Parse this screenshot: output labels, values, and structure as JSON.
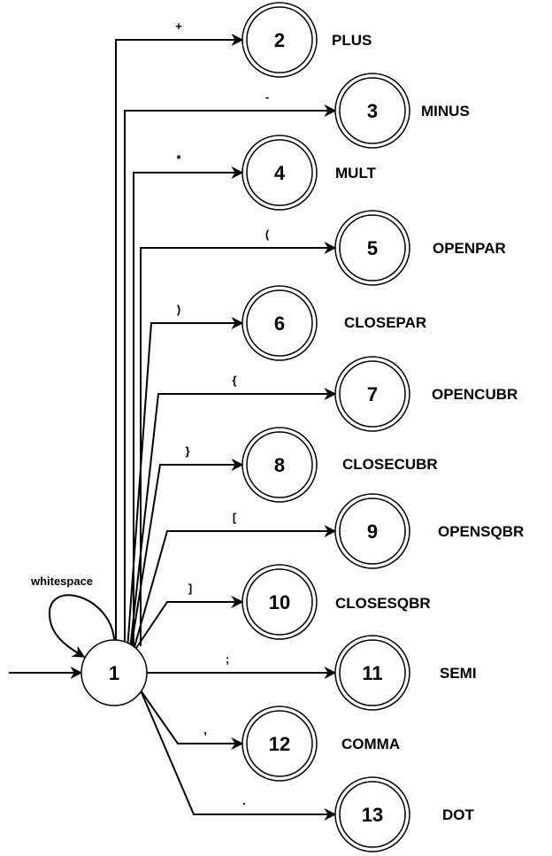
{
  "start_state": {
    "label": "1",
    "self_loop_label": "whitespace"
  },
  "transitions": [
    {
      "symbol": "+",
      "state": "2",
      "token": "PLUS"
    },
    {
      "symbol": "-",
      "state": "3",
      "token": "MINUS"
    },
    {
      "symbol": "*",
      "state": "4",
      "token": "MULT"
    },
    {
      "symbol": "(",
      "state": "5",
      "token": "OPENPAR"
    },
    {
      "symbol": ")",
      "state": "6",
      "token": "CLOSEPAR"
    },
    {
      "symbol": "{",
      "state": "7",
      "token": "OPENCUBR"
    },
    {
      "symbol": "}",
      "state": "8",
      "token": "CLOSECUBR"
    },
    {
      "symbol": "[",
      "state": "9",
      "token": "OPENSQBR"
    },
    {
      "symbol": "]",
      "state": "10",
      "token": "CLOSESQBR"
    },
    {
      "symbol": ";",
      "state": "11",
      "token": "SEMI"
    },
    {
      "symbol": ",",
      "state": "12",
      "token": "COMMA"
    },
    {
      "symbol": ".",
      "state": "13",
      "token": "DOT"
    }
  ]
}
